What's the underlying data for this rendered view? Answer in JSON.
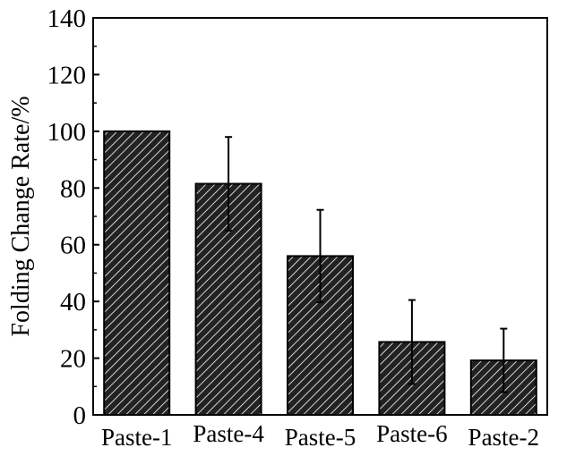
{
  "chart_data": {
    "type": "bar",
    "title": "",
    "xlabel": "",
    "ylabel": "Folding Change Rate/%",
    "ylim": [
      0,
      140
    ],
    "yticks": [
      0,
      20,
      40,
      60,
      80,
      100,
      120,
      140
    ],
    "categories": [
      "Paste-1",
      "Paste-4",
      "Paste-5",
      "Paste-6",
      "Paste-2"
    ],
    "values": [
      100,
      81.5,
      56,
      25.7,
      19.2
    ],
    "errors": [
      0,
      16.5,
      16.3,
      14.8,
      11.2
    ],
    "fill": "hatched",
    "grid": false
  }
}
